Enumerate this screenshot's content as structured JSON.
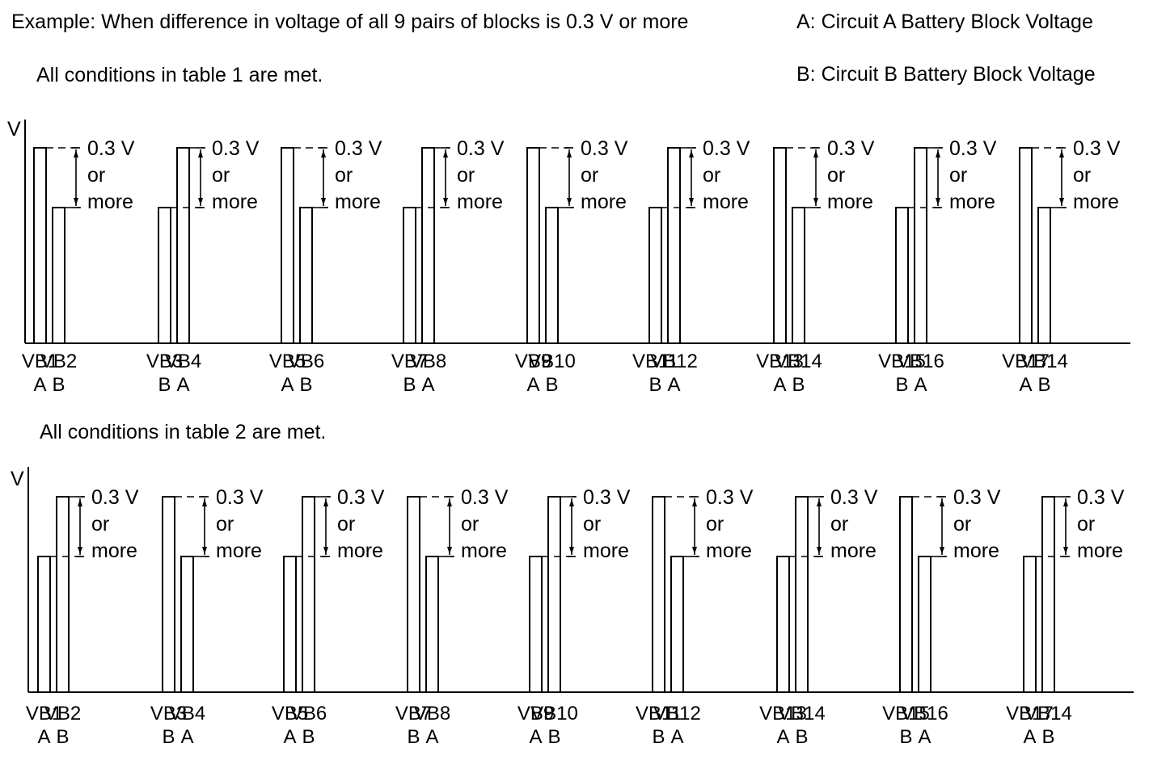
{
  "header": {
    "example": "Example: When difference in voltage of all 9 pairs of blocks is 0.3 V or more",
    "legend_a": "A: Circuit A Battery Block Voltage",
    "legend_b": "B: Circuit B Battery Block Voltage"
  },
  "panels": [
    {
      "caption": "All conditions in table 1 are met.",
      "axis_label": "V",
      "annotation": [
        "0.3 V",
        "or",
        "more"
      ],
      "pairs": [
        {
          "left": {
            "name": "VB1",
            "circuit": "A",
            "level": "high"
          },
          "right": {
            "name": "VB2",
            "circuit": "B",
            "level": "low"
          }
        },
        {
          "left": {
            "name": "VB3",
            "circuit": "B",
            "level": "low"
          },
          "right": {
            "name": "VB4",
            "circuit": "A",
            "level": "high"
          }
        },
        {
          "left": {
            "name": "VB5",
            "circuit": "A",
            "level": "high"
          },
          "right": {
            "name": "VB6",
            "circuit": "B",
            "level": "low"
          }
        },
        {
          "left": {
            "name": "VB7",
            "circuit": "B",
            "level": "low"
          },
          "right": {
            "name": "VB8",
            "circuit": "A",
            "level": "high"
          }
        },
        {
          "left": {
            "name": "VB9",
            "circuit": "A",
            "level": "high"
          },
          "right": {
            "name": "VB10",
            "circuit": "B",
            "level": "low"
          }
        },
        {
          "left": {
            "name": "VB11",
            "circuit": "B",
            "level": "low"
          },
          "right": {
            "name": "VB12",
            "circuit": "A",
            "level": "high"
          }
        },
        {
          "left": {
            "name": "VB13",
            "circuit": "A",
            "level": "high"
          },
          "right": {
            "name": "VB14",
            "circuit": "B",
            "level": "low"
          }
        },
        {
          "left": {
            "name": "VB15",
            "circuit": "B",
            "level": "low"
          },
          "right": {
            "name": "VB16",
            "circuit": "A",
            "level": "high"
          }
        },
        {
          "left": {
            "name": "VB17",
            "circuit": "A",
            "level": "high"
          },
          "right": {
            "name": "VB14",
            "circuit": "B",
            "level": "low"
          }
        }
      ]
    },
    {
      "caption": "All conditions in table 2 are met.",
      "axis_label": "V",
      "annotation": [
        "0.3 V",
        "or",
        "more"
      ],
      "pairs": [
        {
          "left": {
            "name": "VB1",
            "circuit": "A",
            "level": "low"
          },
          "right": {
            "name": "VB2",
            "circuit": "B",
            "level": "high"
          }
        },
        {
          "left": {
            "name": "VB3",
            "circuit": "B",
            "level": "high"
          },
          "right": {
            "name": "VB4",
            "circuit": "A",
            "level": "low"
          }
        },
        {
          "left": {
            "name": "VB5",
            "circuit": "A",
            "level": "low"
          },
          "right": {
            "name": "VB6",
            "circuit": "B",
            "level": "high"
          }
        },
        {
          "left": {
            "name": "VB7",
            "circuit": "B",
            "level": "high"
          },
          "right": {
            "name": "VB8",
            "circuit": "A",
            "level": "low"
          }
        },
        {
          "left": {
            "name": "VB9",
            "circuit": "A",
            "level": "low"
          },
          "right": {
            "name": "VB10",
            "circuit": "B",
            "level": "high"
          }
        },
        {
          "left": {
            "name": "VB11",
            "circuit": "B",
            "level": "high"
          },
          "right": {
            "name": "VB12",
            "circuit": "A",
            "level": "low"
          }
        },
        {
          "left": {
            "name": "VB13",
            "circuit": "A",
            "level": "low"
          },
          "right": {
            "name": "VB14",
            "circuit": "B",
            "level": "high"
          }
        },
        {
          "left": {
            "name": "VB15",
            "circuit": "B",
            "level": "high"
          },
          "right": {
            "name": "VB16",
            "circuit": "A",
            "level": "low"
          }
        },
        {
          "left": {
            "name": "VB17",
            "circuit": "A",
            "level": "low"
          },
          "right": {
            "name": "VB14",
            "circuit": "B",
            "level": "high"
          }
        }
      ]
    }
  ]
}
